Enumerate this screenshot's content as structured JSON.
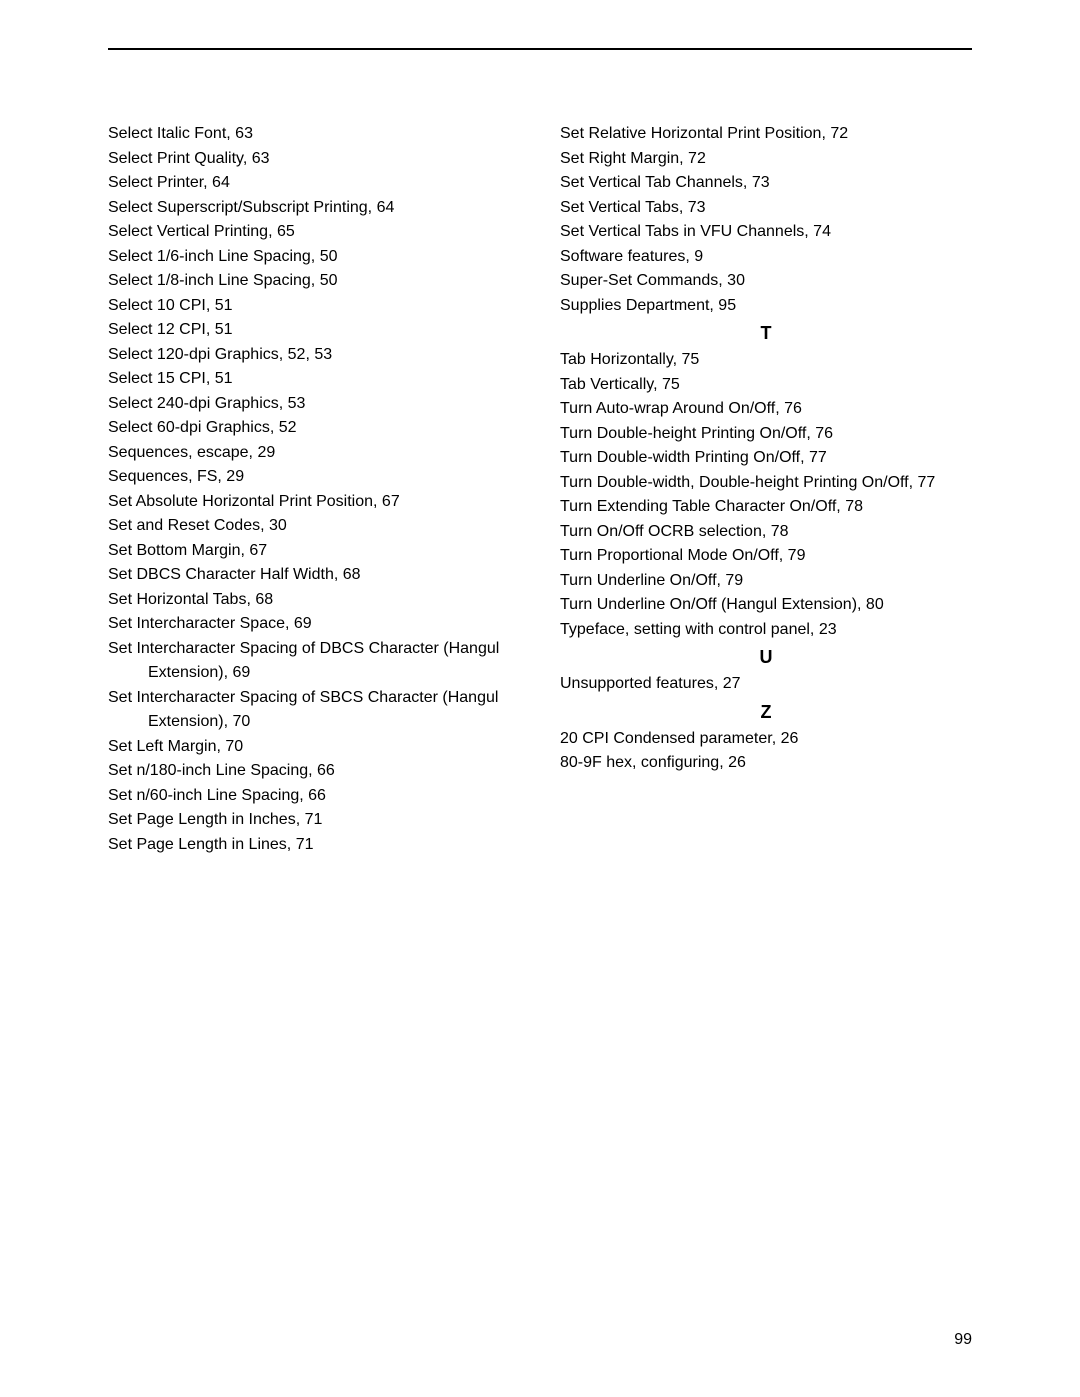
{
  "pageNumber": "99",
  "left": [
    "Select Italic Font, 63",
    "Select Print Quality, 63",
    "Select Printer, 64",
    "Select Superscript/Subscript Printing, 64",
    "Select Vertical Printing, 65",
    "Select 1/6-inch Line Spacing, 50",
    "Select 1/8-inch Line Spacing, 50",
    "Select 10 CPI, 51",
    "Select 12 CPI, 51",
    "Select 120-dpi Graphics, 52, 53",
    "Select 15 CPI, 51",
    "Select 240-dpi Graphics, 53",
    "Select 60-dpi Graphics, 52",
    "Sequences, escape, 29",
    "Sequences, FS, 29",
    "Set Absolute Horizontal Print Position, 67",
    "Set and Reset Codes, 30",
    "Set Bottom Margin, 67",
    "Set DBCS Character Half Width, 68",
    "Set Horizontal Tabs, 68",
    "Set Intercharacter Space, 69",
    "Set Intercharacter Spacing of DBCS Character (Hangul Extension), 69",
    "Set Intercharacter Spacing of SBCS Character (Hangul Extension), 70",
    "Set Left Margin, 70",
    "Set n/180-inch Line Spacing, 66",
    "Set n/60-inch Line Spacing, 66",
    "Set Page Length in Inches, 71",
    "Set Page Length in Lines, 71"
  ],
  "right": [
    {
      "type": "entry",
      "text": "Set Relative Horizontal Print Position, 72"
    },
    {
      "type": "entry",
      "text": "Set Right Margin, 72"
    },
    {
      "type": "entry",
      "text": "Set Vertical Tab Channels, 73"
    },
    {
      "type": "entry",
      "text": "Set Vertical Tabs, 73"
    },
    {
      "type": "entry",
      "text": "Set Vertical Tabs in VFU Channels, 74"
    },
    {
      "type": "entry",
      "text": "Software features, 9"
    },
    {
      "type": "entry",
      "text": "Super-Set Commands, 30"
    },
    {
      "type": "entry",
      "text": "Supplies Department, 95"
    },
    {
      "type": "section",
      "text": "T"
    },
    {
      "type": "entry",
      "text": "Tab Horizontally, 75"
    },
    {
      "type": "entry",
      "text": "Tab Vertically, 75"
    },
    {
      "type": "entry",
      "text": "Turn Auto-wrap Around On/Off, 76"
    },
    {
      "type": "entry",
      "text": "Turn Double-height Printing On/Off, 76"
    },
    {
      "type": "entry",
      "text": "Turn Double-width Printing On/Off, 77"
    },
    {
      "type": "entry",
      "text": "Turn Double-width, Double-height Printing On/Off, 77"
    },
    {
      "type": "entry",
      "text": "Turn Extending Table Character On/Off, 78"
    },
    {
      "type": "entry",
      "text": "Turn On/Off OCRB selection, 78"
    },
    {
      "type": "entry",
      "text": "Turn Proportional Mode On/Off, 79"
    },
    {
      "type": "entry",
      "text": "Turn Underline On/Off, 79"
    },
    {
      "type": "entry",
      "text": "Turn Underline On/Off (Hangul Extension), 80"
    },
    {
      "type": "entry",
      "text": "Typeface, setting with control panel, 23"
    },
    {
      "type": "section",
      "text": "U"
    },
    {
      "type": "entry",
      "text": "Unsupported features, 27"
    },
    {
      "type": "section",
      "text": "Z"
    },
    {
      "type": "entry",
      "text": "20 CPI Condensed parameter, 26"
    },
    {
      "type": "entry",
      "text": "80-9F hex, configuring, 26"
    }
  ]
}
